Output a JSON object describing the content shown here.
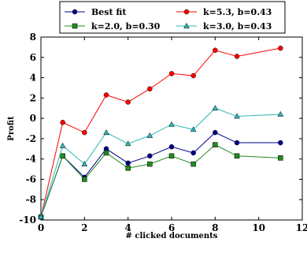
{
  "chart_data": {
    "type": "line",
    "title": "",
    "xlabel": "# clicked documents",
    "ylabel": "Profit",
    "xlim": [
      0,
      12
    ],
    "ylim": [
      -10,
      8
    ],
    "xticks": [
      0,
      2,
      4,
      6,
      8,
      10,
      12
    ],
    "yticks": [
      -10,
      -8,
      -6,
      -4,
      -2,
      0,
      2,
      4,
      6,
      8
    ],
    "grid": false,
    "legend_position": "top",
    "x": [
      0,
      1,
      2,
      3,
      4,
      5,
      6,
      7,
      8,
      9,
      11
    ],
    "series": [
      {
        "name": "Best fit",
        "color": "#00008b",
        "marker": "circle",
        "values": [
          -9.7,
          -3.7,
          -5.8,
          -3.0,
          -4.4,
          -3.7,
          -2.8,
          -3.4,
          -1.4,
          -2.4,
          -2.4
        ]
      },
      {
        "name": "k=5.3, b=0.43",
        "color": "#ff0000",
        "marker": "circle",
        "values": [
          -9.7,
          -0.4,
          -1.4,
          2.3,
          1.6,
          2.9,
          4.4,
          4.2,
          6.7,
          6.1,
          6.9
        ]
      },
      {
        "name": "k=2.0, b=0.30",
        "color": "#228b22",
        "marker": "square",
        "values": [
          -9.7,
          -3.7,
          -6.0,
          -3.4,
          -4.9,
          -4.5,
          -3.7,
          -4.5,
          -2.6,
          -3.7,
          -3.9
        ]
      },
      {
        "name": "k=3.0, b=0.43",
        "color": "#2fb8b8",
        "marker": "triangle",
        "values": [
          -9.7,
          -2.7,
          -4.5,
          -1.4,
          -2.5,
          -1.7,
          -0.6,
          -1.1,
          1.0,
          0.2,
          0.4
        ]
      }
    ]
  }
}
